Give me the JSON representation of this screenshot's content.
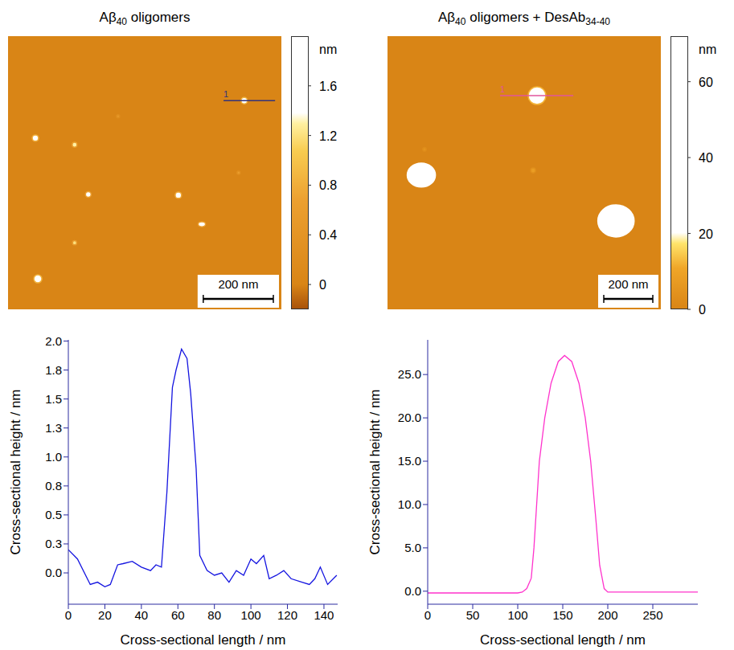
{
  "images": [
    {
      "title": [
        "Aβ",
        {
          "sub": "40"
        },
        " oligomers"
      ],
      "image_size_nm": 780,
      "scale_bar": {
        "value": 200,
        "label": "200 nm"
      },
      "background": 0,
      "colorbar": {
        "unit": "nm",
        "range": [
          -0.2,
          2.0
        ],
        "ticks": [
          1.6,
          1.2,
          0.8,
          0.4,
          0
        ]
      },
      "section": {
        "label": "1",
        "x1": 615,
        "x2": 762,
        "y": 184
      },
      "particles": [
        {
          "x": 78,
          "y": 291,
          "w": 18,
          "h": 18,
          "height": 1.8
        },
        {
          "x": 190,
          "y": 310,
          "w": 14,
          "h": 14,
          "height": 1.3
        },
        {
          "x": 229,
          "y": 452,
          "w": 16,
          "h": 16,
          "height": 1.5
        },
        {
          "x": 486,
          "y": 454,
          "w": 18,
          "h": 18,
          "height": 1.7
        },
        {
          "x": 553,
          "y": 537,
          "w": 21,
          "h": 14,
          "height": 1.5
        },
        {
          "x": 190,
          "y": 590,
          "w": 12,
          "h": 12,
          "height": 1.2
        },
        {
          "x": 85,
          "y": 693,
          "w": 23,
          "h": 23,
          "height": 1.9
        },
        {
          "x": 674,
          "y": 184,
          "w": 18,
          "h": 18,
          "height": 1.9
        },
        {
          "x": 658,
          "y": 390,
          "w": 9,
          "h": 9,
          "height": 0.6
        },
        {
          "x": 314,
          "y": 229,
          "w": 9,
          "h": 9,
          "height": 0.5
        }
      ]
    },
    {
      "title": [
        "Aβ",
        {
          "sub": "40"
        },
        " oligomers + DesAb",
        {
          "sub": "34-40"
        }
      ],
      "image_size_nm": 1115,
      "scale_bar": {
        "value": 200,
        "label": "200 nm"
      },
      "background": 0,
      "colorbar": {
        "unit": "nm",
        "range": [
          0,
          72
        ],
        "ticks": [
          60,
          40,
          20,
          0
        ]
      },
      "section": {
        "label": "1",
        "x1": 459,
        "x2": 758,
        "y": 243
      },
      "particles": [
        {
          "x": 138,
          "y": 567,
          "w": 115,
          "h": 98,
          "height": 70
        },
        {
          "x": 932,
          "y": 754,
          "w": 148,
          "h": 131,
          "height": 72
        },
        {
          "x": 610,
          "y": 243,
          "w": 72,
          "h": 72,
          "height": 27
        },
        {
          "x": 594,
          "y": 548,
          "w": 20,
          "h": 20,
          "height": 8
        },
        {
          "x": 151,
          "y": 462,
          "w": 15,
          "h": 15,
          "height": 5
        }
      ]
    }
  ],
  "chart_data": [
    {
      "type": "line",
      "xlabel": "Cross-sectional length / nm",
      "ylabel": "Cross-sectional height / nm",
      "xlim": [
        0,
        147.5
      ],
      "xticks": [
        0,
        20,
        40,
        60,
        80,
        100,
        120,
        140
      ],
      "ylim": [
        -0.27,
        2.01
      ],
      "yticks": [
        {
          "value": 0,
          "label": "0.0"
        },
        {
          "value": 0.25,
          "label": "0.3"
        },
        {
          "value": 0.5,
          "label": "0.5"
        },
        {
          "value": 0.75,
          "label": "0.8"
        },
        {
          "value": 1,
          "label": "1.0"
        },
        {
          "value": 1.25,
          "label": "1.3"
        },
        {
          "value": 1.5,
          "label": "1.5"
        },
        {
          "value": 1.75,
          "label": "1.8"
        },
        {
          "value": 2,
          "label": "2.0"
        }
      ],
      "grid": false,
      "x": [
        0,
        5,
        12,
        16,
        20,
        23,
        27,
        30,
        35,
        40,
        45,
        48,
        51,
        54,
        57,
        59,
        62,
        65,
        67,
        70,
        72,
        76,
        80,
        84,
        88,
        92,
        96,
        100,
        103,
        107,
        110,
        114,
        118,
        122,
        128,
        132,
        135,
        138,
        142,
        147
      ],
      "series": [
        {
          "color": "#1515e0",
          "values": [
            0.2,
            0.12,
            -0.1,
            -0.08,
            -0.12,
            -0.1,
            0.07,
            0.08,
            0.1,
            0.05,
            0.02,
            0.07,
            0.05,
            0.7,
            1.6,
            1.75,
            1.93,
            1.85,
            1.55,
            0.9,
            0.15,
            0.02,
            -0.02,
            0.0,
            -0.08,
            0.02,
            -0.02,
            0.12,
            0.08,
            0.15,
            -0.05,
            -0.02,
            0.02,
            -0.05,
            -0.08,
            -0.1,
            -0.05,
            0.05,
            -0.1,
            -0.02
          ]
        }
      ]
    },
    {
      "type": "line",
      "xlabel": "Cross-sectional length / nm",
      "ylabel": "Cross-sectional height / nm",
      "xlim": [
        0,
        300
      ],
      "xticks": [
        0,
        50,
        100,
        150,
        200,
        250
      ],
      "ylim": [
        -1.5,
        29
      ],
      "yticks": [
        {
          "value": 0,
          "label": "0.0"
        },
        {
          "value": 5,
          "label": "5.0"
        },
        {
          "value": 10,
          "label": "10.0"
        },
        {
          "value": 15,
          "label": "15.0"
        },
        {
          "value": 20,
          "label": "20.0"
        },
        {
          "value": 25,
          "label": "25.0"
        }
      ],
      "grid": false,
      "x": [
        0,
        50,
        100,
        105,
        110,
        115,
        118,
        121,
        124,
        130,
        137,
        145,
        152,
        160,
        168,
        175,
        181,
        187,
        191,
        196,
        200,
        250,
        300
      ],
      "series": [
        {
          "color": "#ff33cc",
          "values": [
            -0.2,
            -0.2,
            -0.2,
            -0.1,
            0.3,
            1.5,
            5,
            10,
            15,
            20,
            24,
            26.5,
            27.2,
            26.5,
            24,
            20,
            15,
            8,
            3,
            0.3,
            -0.1,
            -0.1,
            -0.1
          ]
        }
      ]
    }
  ]
}
